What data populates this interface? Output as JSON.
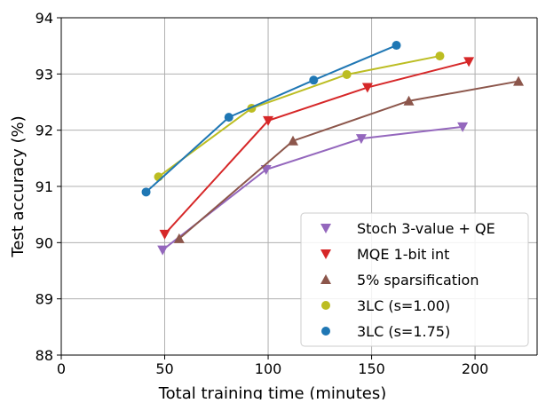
{
  "chart_data": {
    "type": "line",
    "title": "",
    "xlabel": "Total training time (minutes)",
    "ylabel": "Test accuracy (%)",
    "xlim": [
      0,
      230
    ],
    "ylim": [
      88,
      94
    ],
    "xticks": [
      0,
      50,
      100,
      150,
      200
    ],
    "yticks": [
      88,
      89,
      90,
      91,
      92,
      93,
      94
    ],
    "grid": true,
    "legend_position": "lower-right",
    "series": [
      {
        "name": "Stoch 3-value + QE",
        "color": "#9467bd",
        "marker": "triangle-down",
        "x": [
          49,
          99,
          145,
          194
        ],
        "y": [
          89.87,
          91.3,
          91.85,
          92.06
        ]
      },
      {
        "name": "MQE 1-bit int",
        "color": "#d62728",
        "marker": "triangle-down",
        "x": [
          50,
          100,
          148,
          197
        ],
        "y": [
          90.15,
          92.17,
          92.76,
          93.22
        ]
      },
      {
        "name": "5% sparsification",
        "color": "#8c564b",
        "marker": "triangle-up",
        "x": [
          57,
          112,
          168,
          221
        ],
        "y": [
          90.07,
          91.81,
          92.52,
          92.87
        ]
      },
      {
        "name": "3LC (s=1.00)",
        "color": "#bcbd22",
        "marker": "circle",
        "x": [
          47,
          92,
          138,
          183
        ],
        "y": [
          91.17,
          92.39,
          92.99,
          93.32
        ]
      },
      {
        "name": "3LC (s=1.75)",
        "color": "#1f77b4",
        "marker": "circle",
        "x": [
          41,
          81,
          122,
          162
        ],
        "y": [
          90.9,
          92.23,
          92.89,
          93.51
        ]
      }
    ]
  }
}
